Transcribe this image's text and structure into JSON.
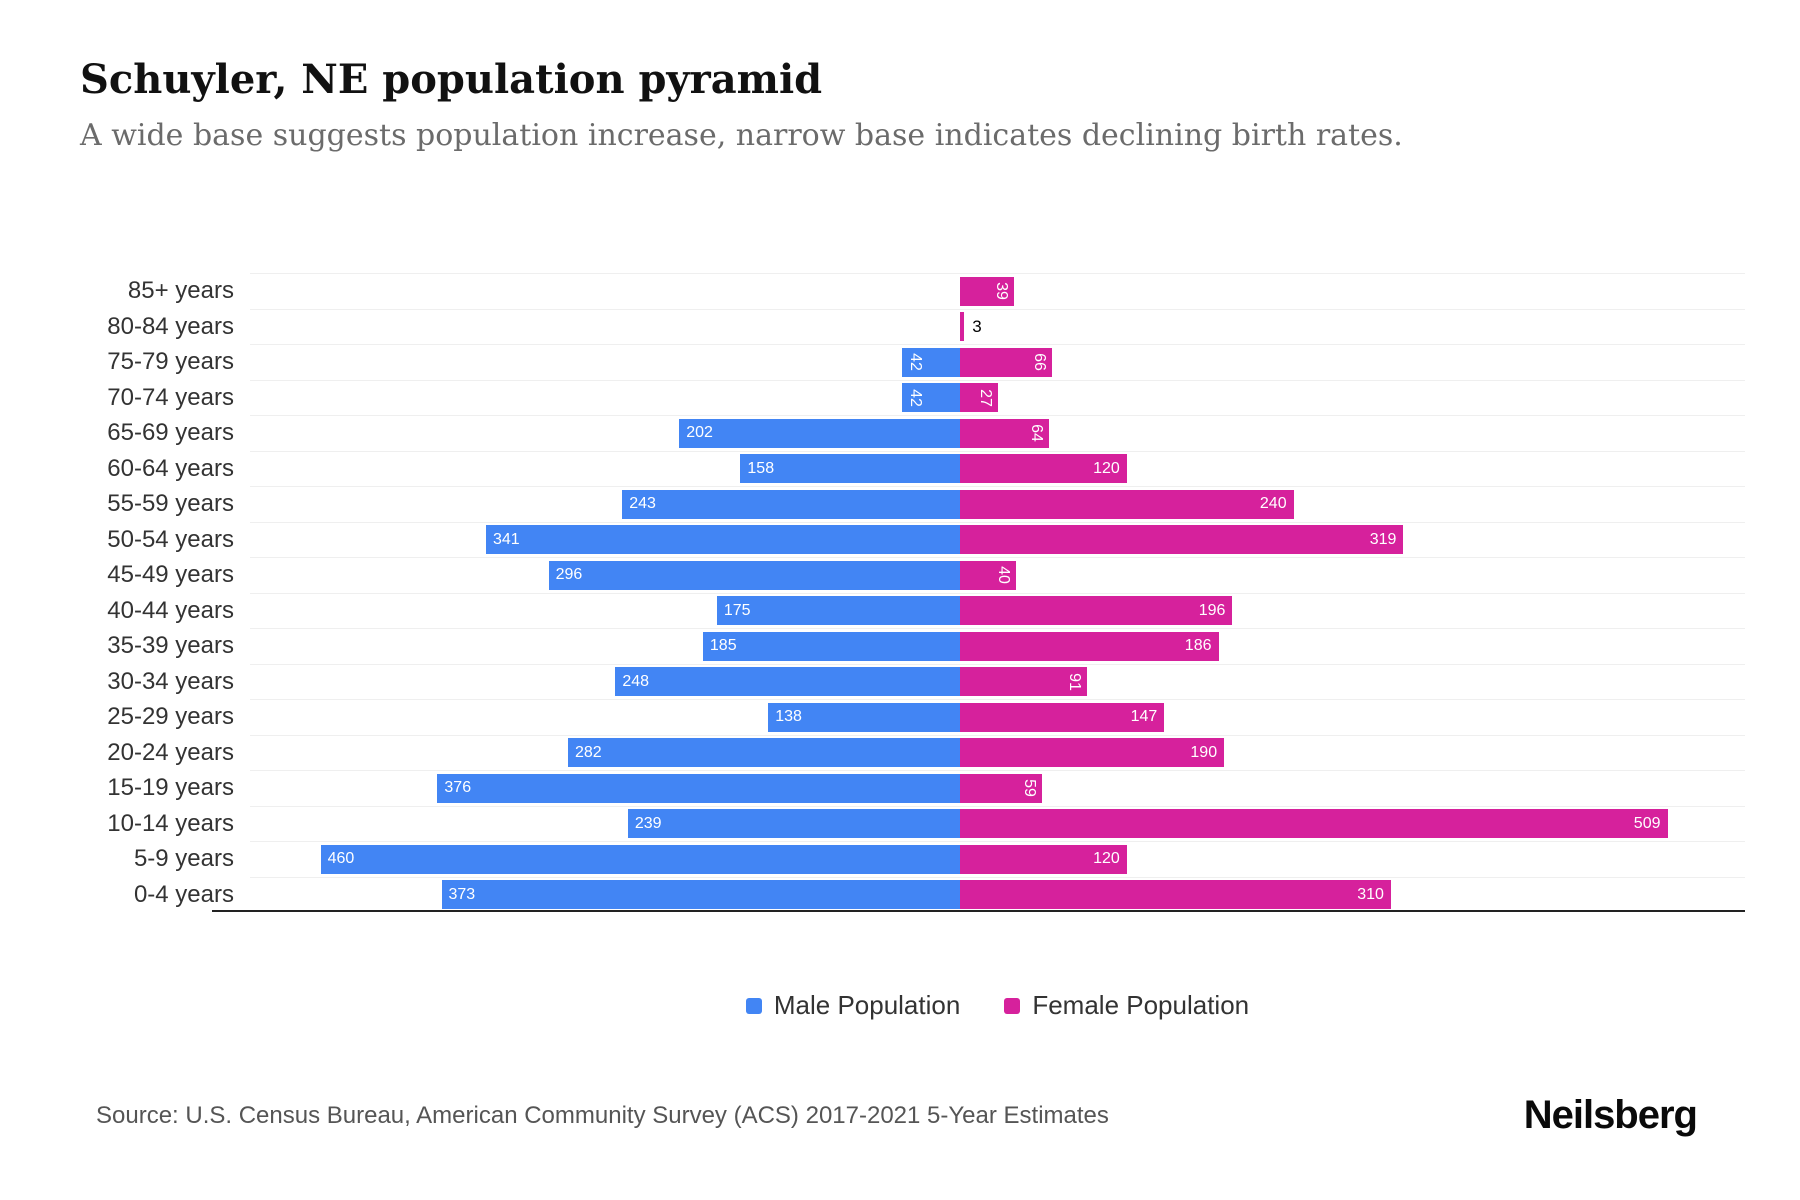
{
  "header": {
    "title": "Schuyler, NE population pyramid",
    "subtitle": "A wide base suggests population increase, narrow base indicates declining birth rates."
  },
  "legend": {
    "male_label": "Male Population",
    "female_label": "Female Population"
  },
  "footer": {
    "source": "Source: U.S. Census Bureau, American Community Survey (ACS) 2017-2021 5-Year Estimates",
    "brand": "Neilsberg"
  },
  "colors": {
    "male": "#4285F4",
    "female": "#D6219C",
    "gridline": "#EFEFEF",
    "axis_line": "#222222"
  },
  "chart_data": {
    "type": "bar",
    "variant": "population_pyramid",
    "title": "Schuyler, NE population pyramid",
    "subtitle": "A wide base suggests population increase, narrow base indicates declining birth rates.",
    "categories": [
      "85+ years",
      "80-84 years",
      "75-79 years",
      "70-74 years",
      "65-69 years",
      "60-64 years",
      "55-59 years",
      "50-54 years",
      "45-49 years",
      "40-44 years",
      "35-39 years",
      "30-34 years",
      "25-29 years",
      "20-24 years",
      "15-19 years",
      "10-14 years",
      "5-9 years",
      "0-4 years"
    ],
    "series": [
      {
        "name": "Male Population",
        "color": "#4285F4",
        "values": [
          0,
          0,
          42,
          42,
          202,
          158,
          243,
          341,
          296,
          175,
          185,
          248,
          138,
          282,
          376,
          239,
          460,
          373
        ]
      },
      {
        "name": "Female Population",
        "color": "#D6219C",
        "values": [
          39,
          3,
          66,
          27,
          64,
          120,
          240,
          319,
          40,
          196,
          186,
          91,
          147,
          190,
          59,
          509,
          120,
          310
        ]
      }
    ],
    "value_axis_max": 520,
    "grid": "horizontal-light",
    "legend_position": "bottom",
    "data_label_rules": "labels inside bar ends; values under 100 rotated vertical; values of 10 or less shown outside bar in black"
  }
}
